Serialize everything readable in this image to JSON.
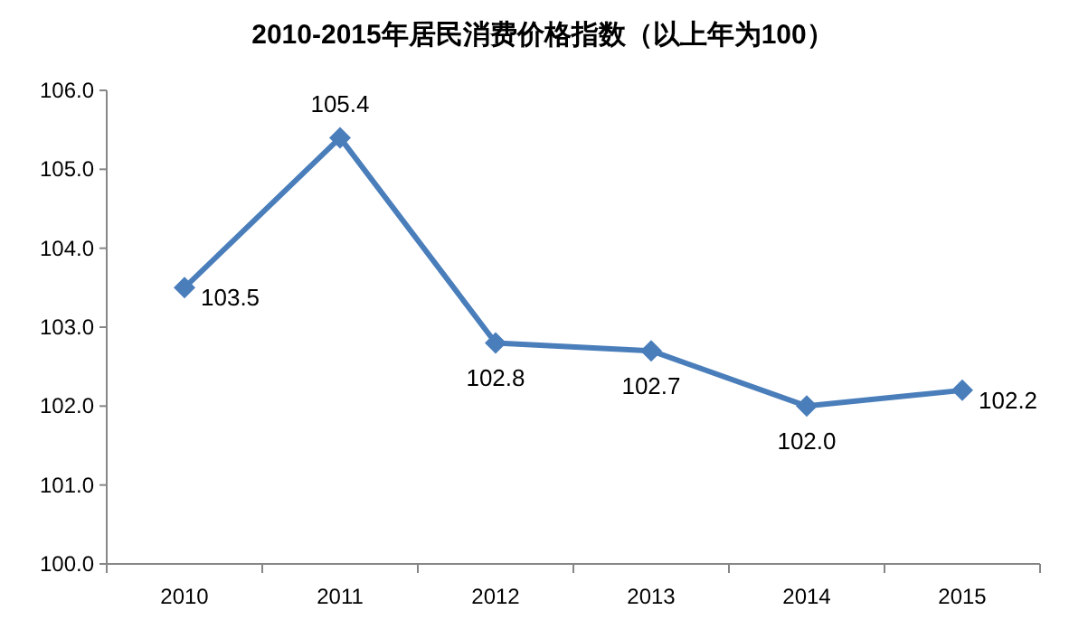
{
  "chart_data": {
    "type": "line",
    "title": "2010-2015年居民消费价格指数（以上年为100）",
    "categories": [
      "2010",
      "2011",
      "2012",
      "2013",
      "2014",
      "2015"
    ],
    "series": [
      {
        "color": "#4a7ebb",
        "values": [
          103.5,
          105.4,
          102.8,
          102.7,
          102.0,
          102.2
        ],
        "value_labels": [
          "103.5",
          "105.4",
          "102.8",
          "102.7",
          "102.0",
          "102.2"
        ]
      }
    ],
    "ylim": [
      100,
      106
    ],
    "yticks": [
      {
        "value": 100,
        "label": "100.0"
      },
      {
        "value": 101,
        "label": "101.0"
      },
      {
        "value": 102,
        "label": "102.0"
      },
      {
        "value": 103,
        "label": "103.0"
      },
      {
        "value": 104,
        "label": "104.0"
      },
      {
        "value": 105,
        "label": "105.0"
      },
      {
        "value": 106,
        "label": "106.0"
      }
    ],
    "grid": false,
    "marker": "diamond",
    "line_style": "solid"
  }
}
